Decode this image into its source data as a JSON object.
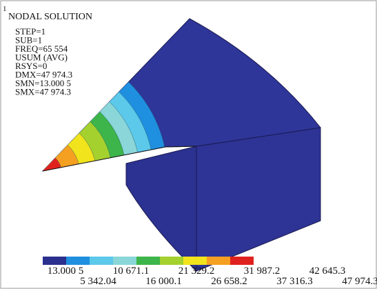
{
  "header": {
    "window_number": "1",
    "title": "NODAL SOLUTION",
    "info": [
      "STEP=1",
      "SUB=1",
      "FREQ=65 554",
      "USUM (AVG)",
      "RSYS=0",
      "DMX=47 974.3",
      "SMN=13.000 5",
      "SMX=47 974.3"
    ]
  },
  "legend": {
    "colors": [
      "#2b2f8e",
      "#1f8fe0",
      "#5cc8ea",
      "#8ad6d8",
      "#3db54a",
      "#a4d12e",
      "#f1e31c",
      "#f5a021",
      "#e0221f"
    ],
    "labels": [
      "13.000 5",
      "5 342.04",
      "10 671.1",
      "16 000.1",
      "21 329.2",
      "26 658.2",
      "31 987.2",
      "37 316.3",
      "42 645.3",
      "47 974.3"
    ]
  }
}
